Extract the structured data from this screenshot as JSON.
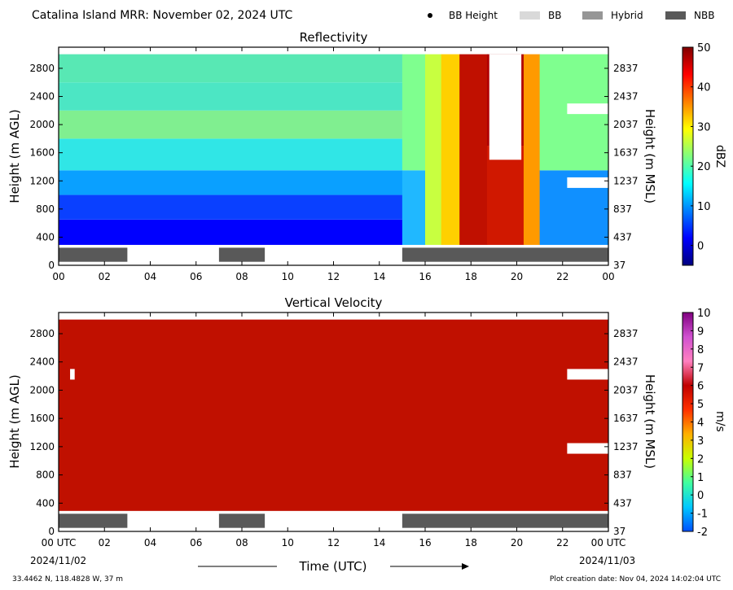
{
  "header": {
    "title": "Catalina Island MRR:  November 02, 2024 UTC",
    "legend": [
      {
        "label": "BB Height",
        "symbol": "dot",
        "color": "#000000"
      },
      {
        "label": "BB",
        "symbol": "bar",
        "color": "#d9d9d9"
      },
      {
        "label": "Hybrid",
        "symbol": "bar",
        "color": "#969696"
      },
      {
        "label": "NBB",
        "symbol": "bar",
        "color": "#595959"
      }
    ]
  },
  "footer": {
    "location": "33.4462 N, 118.4828 W, 37 m",
    "creation": "Plot creation date: Nov 04, 2024 14:02:04 UTC",
    "xlabel": "Time (UTC)",
    "start_date": "2024/11/02",
    "end_date": "2024/11/03"
  },
  "chart_data": [
    {
      "type": "heatmap",
      "title": "Reflectivity",
      "ylabel_left": "Height (m AGL)",
      "ylabel_right": "Height (m MSL)",
      "colorbar_label": "dBZ",
      "colorbar_ticks": [
        "50",
        "40",
        "30",
        "20",
        "10",
        "0"
      ],
      "colorbar_range": [
        -5,
        50
      ],
      "colors": [
        "#00007f",
        "#0000ff",
        "#007fff",
        "#00ffff",
        "#7fff7f",
        "#ffff00",
        "#ff7f00",
        "#ff0000",
        "#7f0000"
      ],
      "yticks_left": [
        "2800",
        "2400",
        "2000",
        "1600",
        "1200",
        "800",
        "400",
        "0"
      ],
      "yticks_right": [
        "2837",
        "2437",
        "2037",
        "1637",
        "1237",
        "837",
        "437",
        "37"
      ],
      "xticks": [
        "00",
        "02",
        "04",
        "06",
        "08",
        "10",
        "12",
        "14",
        "16",
        "18",
        "20",
        "22",
        "00"
      ],
      "xlim_hours": [
        0,
        24
      ],
      "ylim_m_agl": [
        0,
        3100
      ],
      "radar_min_height_m": 290,
      "bands": [
        {
          "start_h": 0.0,
          "end_h": 15.0,
          "layers": [
            {
              "from": 290,
              "to": 650,
              "color": "#0000ff"
            },
            {
              "from": 650,
              "to": 1000,
              "color": "#0a40ff"
            },
            {
              "from": 1000,
              "to": 1350,
              "color": "#0aa0ff"
            },
            {
              "from": 1350,
              "to": 1800,
              "color": "#30e6e6"
            },
            {
              "from": 1800,
              "to": 2200,
              "color": "#80ef90"
            },
            {
              "from": 2200,
              "to": 2600,
              "color": "#4ce6c4"
            },
            {
              "from": 2600,
              "to": 3000,
              "color": "#58e8b4"
            }
          ]
        },
        {
          "start_h": 15.0,
          "end_h": 16.0,
          "layers": [
            {
              "from": 290,
              "to": 1350,
              "color": "#20b8ff"
            },
            {
              "from": 1350,
              "to": 3000,
              "color": "#7fff8f"
            }
          ]
        },
        {
          "start_h": 16.0,
          "end_h": 16.7,
          "layers": [
            {
              "from": 290,
              "to": 3000,
              "color": "#c8ff40"
            }
          ]
        },
        {
          "start_h": 16.7,
          "end_h": 17.5,
          "layers": [
            {
              "from": 290,
              "to": 3000,
              "color": "#ffd000"
            }
          ]
        },
        {
          "start_h": 17.5,
          "end_h": 18.7,
          "layers": [
            {
              "from": 290,
              "to": 3000,
              "color": "#c01000"
            }
          ]
        },
        {
          "start_h": 18.7,
          "end_h": 20.3,
          "layers": [
            {
              "from": 290,
              "to": 1700,
              "color": "#d01800"
            },
            {
              "from": 1700,
              "to": 3000,
              "color": "#b00000"
            }
          ]
        },
        {
          "start_h": 20.3,
          "end_h": 21.0,
          "layers": [
            {
              "from": 290,
              "to": 3000,
              "color": "#ff9a00"
            }
          ]
        },
        {
          "start_h": 21.0,
          "end_h": 24.0,
          "layers": [
            {
              "from": 290,
              "to": 1350,
              "color": "#1090ff"
            },
            {
              "from": 1350,
              "to": 3000,
              "color": "#7fff8f"
            }
          ]
        }
      ],
      "gaps": [
        {
          "start_h": 18.8,
          "end_h": 20.2,
          "from": 1500,
          "to": 3000
        },
        {
          "start_h": 22.2,
          "end_h": 24.0,
          "from": 1100,
          "to": 1250
        },
        {
          "start_h": 22.2,
          "end_h": 24.0,
          "from": 2150,
          "to": 2300
        }
      ],
      "classification": [
        {
          "start_h": 0.0,
          "end_h": 3.0,
          "class": "NBB"
        },
        {
          "start_h": 7.0,
          "end_h": 9.0,
          "class": "NBB"
        },
        {
          "start_h": 15.0,
          "end_h": 24.0,
          "class": "NBB"
        }
      ]
    },
    {
      "type": "heatmap",
      "title": "Vertical Velocity",
      "ylabel_left": "Height (m AGL)",
      "ylabel_right": "Height (m MSL)",
      "colorbar_label": "m/s",
      "colorbar_ticks": [
        "10",
        "9",
        "8",
        "7",
        "6",
        "5",
        "4",
        "3",
        "2",
        "1",
        "0",
        "-1",
        "-2"
      ],
      "colorbar_range": [
        -2,
        10
      ],
      "colors": [
        "#0050ff",
        "#00c8ff",
        "#40ffa0",
        "#c8ff00",
        "#ffb000",
        "#ff3000",
        "#c00000",
        "#ff80c0",
        "#d050d0",
        "#800080"
      ],
      "yticks_left": [
        "2800",
        "2400",
        "2000",
        "1600",
        "1200",
        "800",
        "400",
        "0"
      ],
      "yticks_right": [
        "2837",
        "2437",
        "2037",
        "1637",
        "1237",
        "837",
        "437",
        "37"
      ],
      "xticks": [
        "00 UTC",
        "02",
        "04",
        "06",
        "08",
        "10",
        "12",
        "14",
        "16",
        "18",
        "20",
        "22",
        "00 UTC"
      ],
      "xlim_hours": [
        0,
        24
      ],
      "ylim_m_agl": [
        0,
        3100
      ],
      "radar_min_height_m": 290,
      "bands": [
        {
          "start_h": 0.0,
          "end_h": 24.0,
          "layers": [
            {
              "from": 290,
              "to": 3000,
              "color": "#c01000"
            }
          ]
        }
      ],
      "gaps": [
        {
          "start_h": 22.2,
          "end_h": 24.0,
          "from": 1100,
          "to": 1250
        },
        {
          "start_h": 22.2,
          "end_h": 24.0,
          "from": 2150,
          "to": 2300
        },
        {
          "start_h": 0.5,
          "end_h": 0.7,
          "from": 2150,
          "to": 2300
        }
      ],
      "classification": [
        {
          "start_h": 0.0,
          "end_h": 3.0,
          "class": "NBB"
        },
        {
          "start_h": 7.0,
          "end_h": 9.0,
          "class": "NBB"
        },
        {
          "start_h": 15.0,
          "end_h": 24.0,
          "class": "NBB"
        }
      ]
    }
  ]
}
